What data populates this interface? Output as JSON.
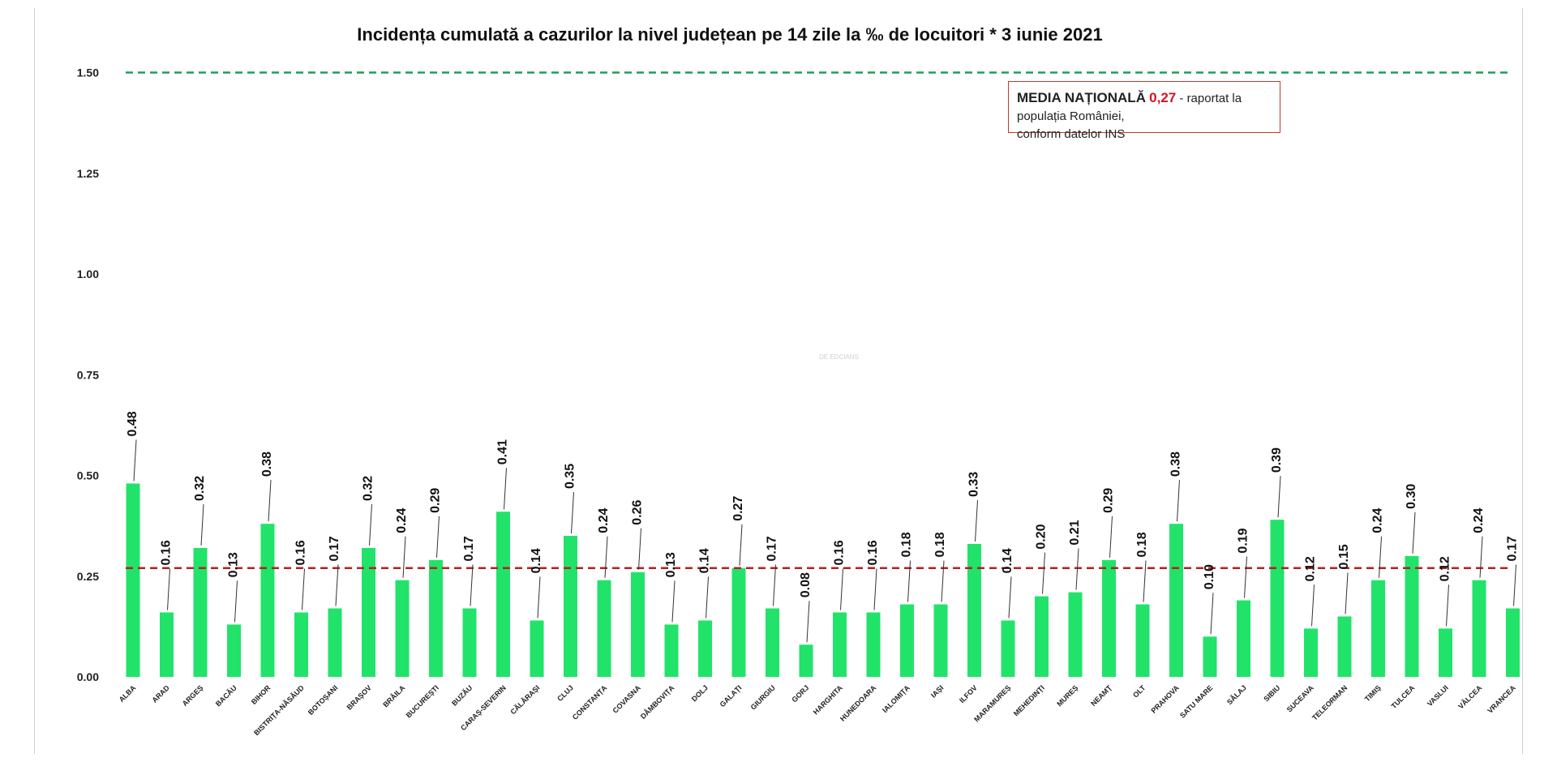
{
  "chart_data": {
    "type": "bar",
    "title": "Incidența cumulată a cazurilor la nivel județean pe 14 zile la ‰ de locuitori *  3 iunie 2021",
    "xlabel": "",
    "ylabel": "",
    "ylim": [
      0,
      1.5
    ],
    "yticks": [
      "0.00",
      "0.25",
      "0.50",
      "0.75",
      "1.00",
      "1.25",
      "1.50"
    ],
    "grid": false,
    "bar_color": "#22e36a",
    "categories": [
      "ALBA",
      "ARAD",
      "ARGEȘ",
      "BACĂU",
      "BIHOR",
      "BISTRIȚA-NĂSĂUD",
      "BOTOȘANI",
      "BRAȘOV",
      "BRĂILA",
      "BUCUREȘTI",
      "BUZĂU",
      "CARAȘ-SEVERIN",
      "CĂLĂRAȘI",
      "CLUJ",
      "CONSTANȚA",
      "COVASNA",
      "DÂMBOVIȚA",
      "DOLJ",
      "GALAȚI",
      "GIURGIU",
      "GORJ",
      "HARGHITA",
      "HUNEDOARA",
      "IALOMIȚA",
      "IAȘI",
      "ILFOV",
      "MARAMUREȘ",
      "MEHEDINȚI",
      "MUREȘ",
      "NEAMȚ",
      "OLT",
      "PRAHOVA",
      "SATU MARE",
      "SĂLAJ",
      "SIBIU",
      "SUCEAVA",
      "TELEORMAN",
      "TIMIȘ",
      "TULCEA",
      "VASLUI",
      "VÂLCEA",
      "VRANCEA"
    ],
    "values": [
      0.48,
      0.16,
      0.32,
      0.13,
      0.38,
      0.16,
      0.17,
      0.32,
      0.24,
      0.29,
      0.17,
      0.41,
      0.14,
      0.35,
      0.24,
      0.26,
      0.13,
      0.14,
      0.27,
      0.17,
      0.08,
      0.16,
      0.16,
      0.18,
      0.18,
      0.33,
      0.14,
      0.2,
      0.21,
      0.29,
      0.18,
      0.38,
      0.1,
      0.19,
      0.39,
      0.12,
      0.15,
      0.24,
      0.3,
      0.12,
      0.24,
      0.17
    ],
    "value_labels": [
      "0.48",
      "0.16",
      "0.32",
      "0.13",
      "0.38",
      "0.16",
      "0.17",
      "0.32",
      "0.24",
      "0.29",
      "0.17",
      "0.41",
      "0.14",
      "0.35",
      "0.24",
      "0.26",
      "0.13",
      "0.14",
      "0.27",
      "0.17",
      "0.08",
      "0.16",
      "0.16",
      "0.18",
      "0.18",
      "0.33",
      "0.14",
      "0.20",
      "0.21",
      "0.29",
      "0.18",
      "0.38",
      "0.10",
      "0.19",
      "0.39",
      "0.12",
      "0.15",
      "0.24",
      "0.30",
      "0.12",
      "0.24",
      "0.17"
    ],
    "reference_lines": [
      {
        "value": 1.5,
        "color": "#1e9e5a",
        "style": "dashed"
      },
      {
        "value": 0.27,
        "color": "#b22222",
        "style": "dashed"
      }
    ]
  },
  "annotation": {
    "label": "MEDIA NAȚIONALĂ",
    "value": "0,27",
    "text1": " - raportat la populația României,",
    "text2": "conform datelor INS"
  },
  "watermark": "DE EDCIANS"
}
